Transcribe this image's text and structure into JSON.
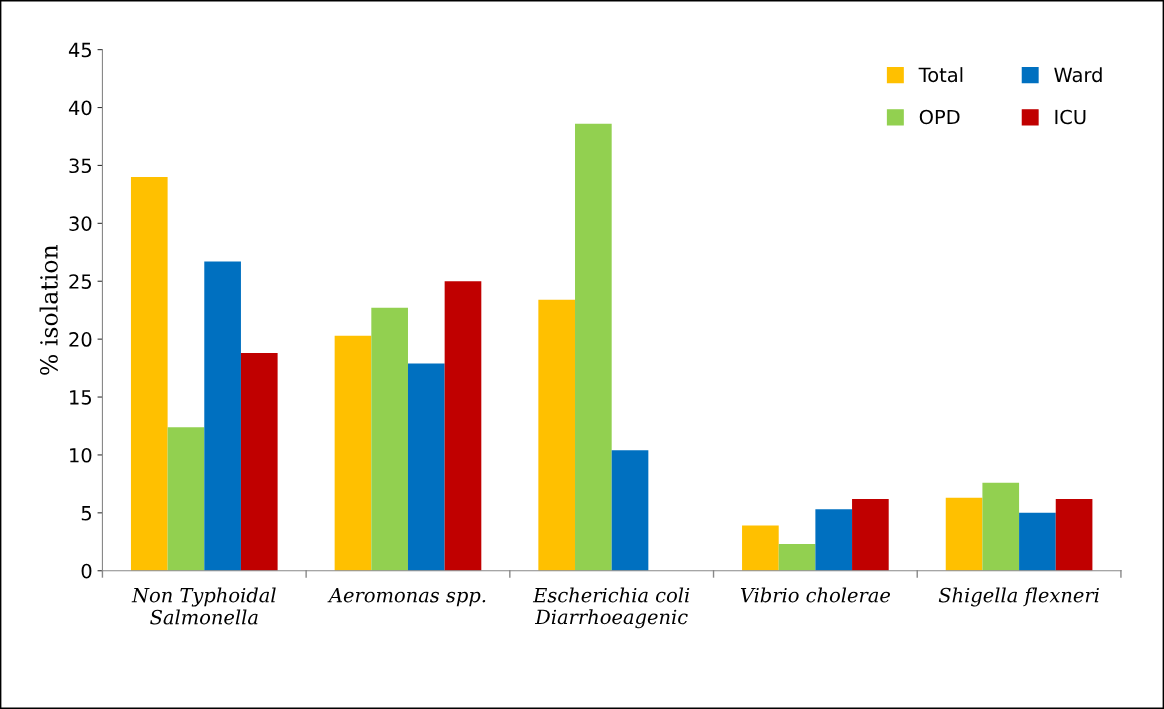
{
  "chart_data": {
    "type": "bar",
    "ylabel": "% isolation",
    "categories": [
      "Non Typhoidal\nSalmonella",
      "Aeromonas spp.",
      "Escherichia coli\nDiarrhoeagenic",
      "Vibrio cholerae",
      "Shigella flexneri"
    ],
    "series": [
      {
        "name": "Total",
        "color": "#ffc000",
        "values": [
          34.0,
          20.3,
          23.4,
          3.9,
          6.3
        ]
      },
      {
        "name": "OPD",
        "color": "#92d050",
        "values": [
          12.4,
          22.7,
          38.6,
          2.3,
          7.6
        ]
      },
      {
        "name": "Ward",
        "color": "#0070c0",
        "values": [
          26.7,
          17.9,
          10.4,
          5.3,
          5.0
        ]
      },
      {
        "name": "ICU",
        "color": "#c00000",
        "values": [
          18.8,
          25.0,
          0,
          6.2,
          6.2
        ]
      }
    ],
    "ylim": [
      0,
      45
    ],
    "yticks": [
      0,
      5,
      10,
      15,
      20,
      25,
      30,
      35,
      40,
      45
    ],
    "grid": false,
    "legend": "top right"
  }
}
